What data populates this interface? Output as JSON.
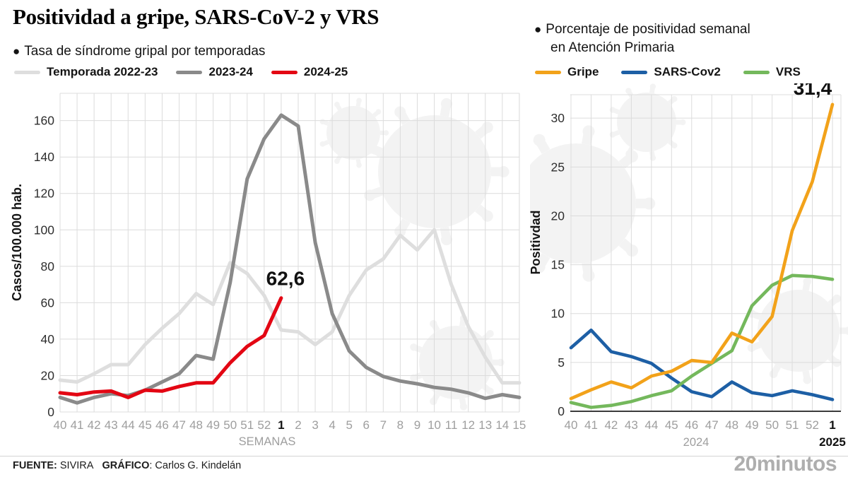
{
  "title": "Positividad a gripe, SARS-CoV-2 y VRS",
  "left_panel": {
    "bullet": "●",
    "subtitle": "Tasa de síndrome gripal por temporadas",
    "legend": [
      {
        "label": "Temporada 2022-23",
        "color": "#dedede"
      },
      {
        "label": "2023-24",
        "color": "#8a8a8a"
      },
      {
        "label": "2024-25",
        "color": "#e30613"
      }
    ]
  },
  "right_panel": {
    "bullet": "●",
    "subtitle_line1": "Porcentaje de positividad semanal",
    "subtitle_line2": "en Atención Primaria",
    "legend": [
      {
        "label": "Gripe",
        "color": "#f2a21a"
      },
      {
        "label": "SARS-Cov2",
        "color": "#1d5fa5"
      },
      {
        "label": "VRS",
        "color": "#74b85c"
      }
    ]
  },
  "chart_data": [
    {
      "id": "flu-syndrome-rate-by-season",
      "type": "line",
      "title": "Tasa de síndrome gripal por temporadas",
      "ylabel": "Casos/100.000 hab.",
      "xlabel": "SEMANAS",
      "ylim": [
        0,
        175
      ],
      "yticks": [
        0,
        20,
        40,
        60,
        80,
        100,
        120,
        140,
        160
      ],
      "grid": true,
      "x_labels": [
        "40",
        "41",
        "42",
        "43",
        "44",
        "45",
        "46",
        "47",
        "48",
        "49",
        "50",
        "51",
        "52",
        "1",
        "2",
        "3",
        "4",
        "5",
        "6",
        "7",
        "8",
        "9",
        "10",
        "11",
        "12",
        "13",
        "14",
        "15"
      ],
      "bold_x_index": 13,
      "series": [
        {
          "name": "Temporada 2022-23",
          "color": "#dedede",
          "values": [
            17.5,
            16.5,
            21,
            26,
            26,
            37,
            46,
            54,
            65,
            59,
            82,
            76,
            64,
            45,
            44,
            37,
            44,
            64,
            78,
            84,
            97,
            89,
            100,
            70,
            47,
            30,
            16,
            16
          ]
        },
        {
          "name": "2023-24",
          "color": "#8a8a8a",
          "values": [
            8,
            5,
            8,
            10,
            9,
            12,
            16.5,
            21,
            31,
            29,
            71,
            128,
            150,
            163,
            157,
            93,
            54,
            33.5,
            24.5,
            19.5,
            17,
            15.5,
            13.5,
            12.5,
            10.5,
            7.5,
            9.5,
            8
          ]
        },
        {
          "name": "2024-25",
          "color": "#e30613",
          "values": [
            10.5,
            9.5,
            11,
            11.5,
            8,
            12,
            11.5,
            14,
            16,
            16,
            27,
            36,
            42,
            62.6
          ]
        }
      ],
      "annotation": {
        "text": "62,6",
        "series": "2024-25",
        "at_x_label": "1",
        "value": 62.6
      }
    },
    {
      "id": "weekly-positivity-primary-care",
      "type": "line",
      "title": "Porcentaje de positividad semanal en Atención Primaria",
      "ylabel": "Positivdad",
      "xlabel": "2024",
      "xlabel2": "2025",
      "ylim": [
        0,
        32.4
      ],
      "yticks": [
        0,
        5,
        10,
        15,
        20,
        25,
        30
      ],
      "grid": true,
      "dark_baseline": true,
      "x_labels": [
        "40",
        "41",
        "42",
        "43",
        "44",
        "45",
        "46",
        "47",
        "48",
        "49",
        "50",
        "51",
        "52",
        "1"
      ],
      "bold_x_index": 13,
      "series": [
        {
          "name": "SARS-Cov2",
          "color": "#1d5fa5",
          "values": [
            6.5,
            8.3,
            6.1,
            5.6,
            4.9,
            3.4,
            2.0,
            1.5,
            3.0,
            1.9,
            1.6,
            2.1,
            1.7,
            1.2
          ]
        },
        {
          "name": "VRS",
          "color": "#74b85c",
          "values": [
            0.9,
            0.4,
            0.6,
            1.0,
            1.6,
            2.1,
            3.6,
            4.9,
            6.2,
            10.8,
            12.9,
            13.9,
            13.8,
            13.5
          ]
        },
        {
          "name": "Gripe",
          "color": "#f2a21a",
          "values": [
            1.3,
            2.2,
            3.0,
            2.4,
            3.6,
            4.1,
            5.2,
            5.0,
            8.0,
            7.1,
            9.7,
            18.5,
            23.5,
            31.4
          ]
        }
      ],
      "annotation": {
        "text": "31,4",
        "series": "Gripe",
        "at_x_label": "1",
        "value": 31.4
      }
    }
  ],
  "footer": {
    "source_label": "FUENTE:",
    "source_value": "SIVIRA",
    "credit_label": "GRÁFICO",
    "credit_value": ": Carlos G. Kindelán",
    "logo": "20minutos"
  }
}
